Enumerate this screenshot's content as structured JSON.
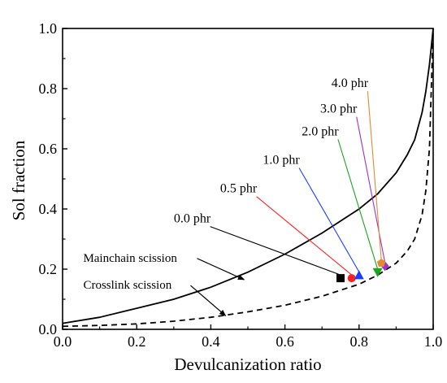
{
  "chart_data": {
    "type": "line",
    "title": "",
    "xlabel": "Devulcanization ratio",
    "ylabel": "Sol fraction",
    "xlim": [
      0.0,
      1.0
    ],
    "ylim": [
      0.0,
      1.0
    ],
    "xticks": [
      "0.0",
      "0.2",
      "0.4",
      "0.6",
      "0.8",
      "1.0"
    ],
    "yticks": [
      "0.0",
      "0.2",
      "0.4",
      "0.6",
      "0.8",
      "1.0"
    ],
    "grid": false,
    "series": [
      {
        "name": "Mainchain scission",
        "style": "solid",
        "color": "#000000",
        "x": [
          0.0,
          0.1,
          0.2,
          0.3,
          0.4,
          0.5,
          0.6,
          0.7,
          0.8,
          0.85,
          0.9,
          0.93,
          0.95,
          0.97,
          0.98,
          0.99,
          1.0
        ],
        "y": [
          0.02,
          0.04,
          0.07,
          0.1,
          0.14,
          0.19,
          0.25,
          0.32,
          0.4,
          0.45,
          0.52,
          0.58,
          0.63,
          0.72,
          0.79,
          0.88,
          1.0
        ]
      },
      {
        "name": "Crosslink scission",
        "style": "dashed",
        "color": "#000000",
        "x": [
          0.0,
          0.1,
          0.2,
          0.3,
          0.4,
          0.5,
          0.6,
          0.7,
          0.8,
          0.85,
          0.9,
          0.93,
          0.95,
          0.97,
          0.98,
          0.99,
          1.0
        ],
        "y": [
          0.01,
          0.013,
          0.018,
          0.027,
          0.04,
          0.058,
          0.08,
          0.11,
          0.15,
          0.18,
          0.22,
          0.26,
          0.3,
          0.38,
          0.46,
          0.6,
          1.0
        ]
      }
    ],
    "points": [
      {
        "label": "0.0 phr",
        "x": 0.75,
        "y": 0.17,
        "marker": "square",
        "color": "#000000"
      },
      {
        "label": "0.5 phr",
        "x": 0.78,
        "y": 0.17,
        "marker": "circle",
        "color": "#ff2020"
      },
      {
        "label": "1.0 phr",
        "x": 0.8,
        "y": 0.18,
        "marker": "triangle-up",
        "color": "#1a3cff"
      },
      {
        "label": "2.0 phr",
        "x": 0.85,
        "y": 0.19,
        "marker": "triangle-down",
        "color": "#1aa51a"
      },
      {
        "label": "3.0 phr",
        "x": 0.87,
        "y": 0.21,
        "marker": "diamond",
        "color": "#9933cc"
      },
      {
        "label": "4.0 phr",
        "x": 0.86,
        "y": 0.22,
        "marker": "pentagon",
        "color": "#e6892e"
      }
    ],
    "point_annotations": [
      {
        "label": "0.0 phr",
        "text_x": 0.35,
        "text_y": 0.355
      },
      {
        "label": "0.5 phr",
        "text_x": 0.475,
        "text_y": 0.455
      },
      {
        "label": "1.0 phr",
        "text_x": 0.59,
        "text_y": 0.55
      },
      {
        "label": "2.0 phr",
        "text_x": 0.695,
        "text_y": 0.645
      },
      {
        "label": "3.0 phr",
        "text_x": 0.745,
        "text_y": 0.72
      },
      {
        "label": "4.0 phr",
        "text_x": 0.775,
        "text_y": 0.805
      }
    ],
    "curve_annotations": [
      {
        "text": "Mainchain scission",
        "text_x": -0.01,
        "text_y": 0.225,
        "arrow_to_x": 0.49,
        "arrow_to_y": 0.165
      },
      {
        "text": "Crosslink scission",
        "text_x": -0.01,
        "text_y": 0.135,
        "arrow_to_x": 0.44,
        "arrow_to_y": 0.045
      }
    ]
  }
}
